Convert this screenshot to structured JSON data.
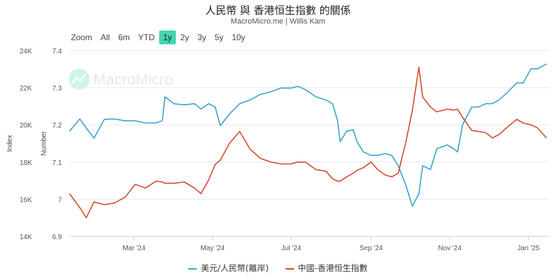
{
  "header": {
    "title": "人民幣 與 香港恒生指數 的關係",
    "subtitle": "MacroMicro.me | Willis Kam"
  },
  "range_selector": {
    "label": "Zoom",
    "options": [
      "All",
      "6m",
      "YTD",
      "1y",
      "2y",
      "3y",
      "5y",
      "10y"
    ],
    "active": "1y"
  },
  "watermark": "MacroMicro",
  "colors": {
    "usdcnh": "#3aa3cc",
    "hsi": "#d44a2f",
    "active_button": "#46d6b0"
  },
  "chart_data": {
    "type": "line",
    "title": "人民幣 與 香港恒生指數 的關係",
    "x": [
      "2024-01-11",
      "2024-01-19",
      "2024-01-24",
      "2024-01-30",
      "2024-02-07",
      "2024-02-15",
      "2024-02-23",
      "2024-03-02",
      "2024-03-10",
      "2024-03-18",
      "2024-03-23",
      "2024-03-25",
      "2024-04-01",
      "2024-04-09",
      "2024-04-17",
      "2024-04-22",
      "2024-04-28",
      "2024-05-03",
      "2024-05-07",
      "2024-05-14",
      "2024-05-22",
      "2024-05-30",
      "2024-06-07",
      "2024-06-15",
      "2024-06-23",
      "2024-07-01",
      "2024-07-06",
      "2024-07-12",
      "2024-07-20",
      "2024-07-28",
      "2024-08-02",
      "2024-08-06",
      "2024-08-08",
      "2024-08-13",
      "2024-08-18",
      "2024-08-21",
      "2024-08-26",
      "2024-09-01",
      "2024-09-06",
      "2024-09-12",
      "2024-09-17",
      "2024-09-22",
      "2024-09-28",
      "2024-10-03",
      "2024-10-08",
      "2024-10-11",
      "2024-10-17",
      "2024-10-22",
      "2024-10-30",
      "2024-11-04",
      "2024-11-07",
      "2024-11-11",
      "2024-11-18",
      "2024-11-23",
      "2024-11-29",
      "2024-12-04",
      "2024-12-09",
      "2024-12-15",
      "2024-12-23",
      "2024-12-28",
      "2025-01-03",
      "2025-01-08",
      "2025-01-15"
    ],
    "x_ticks": [
      "Mar '24",
      "May '24",
      "Jul '24",
      "Sep '24",
      "Nov '24",
      "Jan '25"
    ],
    "x_tick_dates": [
      "2024-03-01",
      "2024-05-01",
      "2024-07-01",
      "2024-09-01",
      "2024-11-01",
      "2025-01-01"
    ],
    "x_range": [
      "2024-01-11",
      "2025-01-17"
    ],
    "y_axes": [
      {
        "label": "Index",
        "ticks": [
          "14K",
          "16K",
          "18K",
          "20K",
          "22K",
          "24K"
        ],
        "range": [
          14000,
          24000
        ]
      },
      {
        "label": "Number",
        "ticks": [
          "6.9",
          "7",
          "7.1",
          "7.2",
          "7.3",
          "7.4"
        ],
        "range": [
          6.9,
          7.4
        ]
      }
    ],
    "series": [
      {
        "name": "美元/人民幣(離岸)",
        "axis": "Number",
        "values": [
          7.183,
          7.216,
          7.192,
          7.164,
          7.215,
          7.216,
          7.211,
          7.211,
          7.205,
          7.205,
          7.211,
          7.276,
          7.257,
          7.254,
          7.257,
          7.243,
          7.257,
          7.248,
          7.198,
          7.229,
          7.257,
          7.267,
          7.282,
          7.289,
          7.299,
          7.299,
          7.304,
          7.295,
          7.276,
          7.267,
          7.257,
          7.211,
          7.155,
          7.183,
          7.187,
          7.155,
          7.127,
          7.118,
          7.118,
          7.123,
          7.118,
          7.09,
          7.037,
          6.981,
          7.015,
          7.09,
          7.08,
          7.136,
          7.146,
          7.136,
          7.127,
          7.201,
          7.248,
          7.248,
          7.257,
          7.257,
          7.267,
          7.285,
          7.313,
          7.313,
          7.351,
          7.351,
          7.364
        ]
      },
      {
        "name": "中國-香港恒生指數",
        "axis": "Index",
        "values": [
          16300,
          15550,
          15000,
          15850,
          15700,
          15800,
          16100,
          16800,
          16600,
          16970,
          16930,
          16860,
          16860,
          16930,
          16600,
          16300,
          17040,
          17870,
          18100,
          19000,
          19650,
          18700,
          18200,
          18000,
          17900,
          17900,
          18000,
          18000,
          17600,
          17500,
          17100,
          16970,
          16970,
          17200,
          17400,
          17550,
          17700,
          18000,
          17600,
          17300,
          17200,
          17400,
          19100,
          20800,
          23100,
          21500,
          20960,
          20700,
          20850,
          20800,
          20850,
          20400,
          19700,
          19650,
          19580,
          19300,
          19470,
          19840,
          20300,
          20100,
          20000,
          19840,
          19300
        ]
      }
    ],
    "grid": true,
    "legend": "bottom"
  }
}
